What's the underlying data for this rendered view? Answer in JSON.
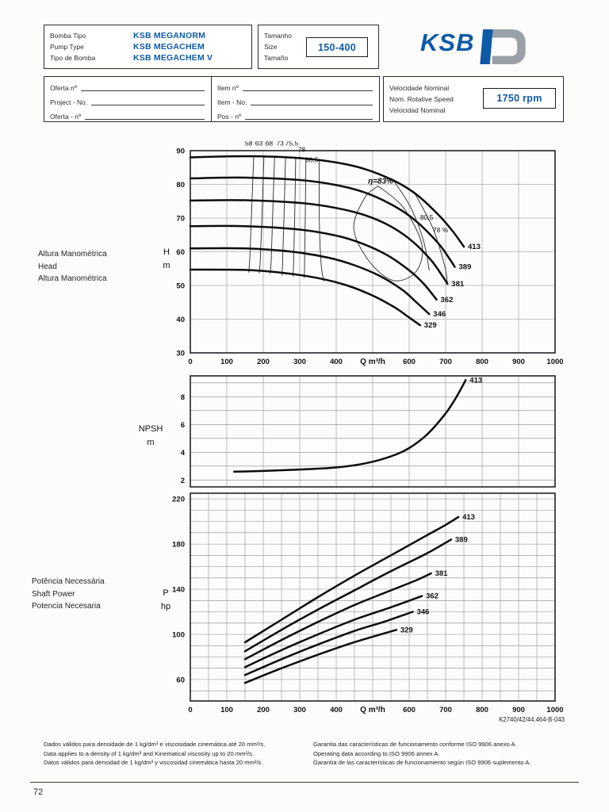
{
  "page": {
    "number": "72",
    "doc_ref": "K2740/42/44.464-B-043"
  },
  "colors": {
    "accent_blue": "#0e5aa7",
    "logo_gray": "#9aa1a8"
  },
  "header": {
    "pump_type": {
      "labels": [
        "Bomba Tipo",
        "Pump Type",
        "Tipo de Bomba"
      ],
      "values": [
        "KSB MEGANORM",
        "KSB MEGACHEM",
        "KSB MEGACHEM V"
      ]
    },
    "size": {
      "labels": [
        "Tamanho",
        "Size",
        "Tamaño"
      ],
      "value": "150-400"
    },
    "logo_text": "KSB",
    "project": {
      "labels": [
        "Oferta nº",
        "Project - No.",
        "Oferta - nº"
      ]
    },
    "item": {
      "labels": [
        "Item nº",
        "Item - No.",
        "Pos - nº"
      ]
    },
    "speed": {
      "labels": [
        "Velocidade Nominal",
        "Nom. Rotative Speed",
        "Velocidad Nominal"
      ],
      "value": "1750 rpm"
    }
  },
  "side_labels": {
    "head": {
      "lines": [
        "Altura Manométrica",
        "Head",
        "Altura Manométrica"
      ],
      "axis": [
        "H",
        "m"
      ]
    },
    "npsh": {
      "axis": [
        "NPSH",
        "m"
      ]
    },
    "power": {
      "lines": [
        "Potência Necessária",
        "Shaft Power",
        "Potencia Necesaria"
      ],
      "axis": [
        "P",
        "hp"
      ]
    }
  },
  "footer": {
    "left": [
      "Dados válidos para densidade de 1 kg/dm³ e viscosidade cinemática até 20 mm²/s.",
      "Data applies to a density of 1 kg/dm³ and Kinematical viscosity up to 20 mm²/s.",
      "Datos válidos para densidad de 1 kg/dm³ y viscosidad cinemática hasta 20 mm²/s."
    ],
    "right": [
      "Garantia das características de funcionamento conforme ISO 9906 anexo A.",
      "Operating data according to ISO 9906 annex A.",
      "Garantía de las características de funcionamiento según ISO 9906 suplemento A."
    ]
  },
  "chart_data": [
    {
      "id": "head",
      "type": "line",
      "title": "Head / flow performance curves, impeller diameters in mm",
      "xlabel": "Q m³/h",
      "xlabel_at": 500,
      "ylabel": "H m",
      "xlim": [
        0,
        1000
      ],
      "ylim": [
        30,
        90
      ],
      "xticks": [
        0,
        100,
        200,
        300,
        400,
        600,
        700,
        800,
        900,
        1000
      ],
      "yticks": [
        30,
        40,
        50,
        60,
        70,
        80,
        90
      ],
      "grid": {
        "vx": 100,
        "hy": 10,
        "h0": 30
      },
      "series": [
        {
          "name": "413",
          "points": [
            [
              0,
              88
            ],
            [
              100,
              88.3
            ],
            [
              200,
              88.3
            ],
            [
              300,
              87.8
            ],
            [
              400,
              86.5
            ],
            [
              480,
              84.5
            ],
            [
              560,
              81
            ],
            [
              620,
              77
            ],
            [
              680,
              71
            ],
            [
              720,
              66
            ],
            [
              750,
              61.5
            ]
          ]
        },
        {
          "name": "389",
          "points": [
            [
              0,
              81.8
            ],
            [
              150,
              82
            ],
            [
              300,
              81.3
            ],
            [
              400,
              79.8
            ],
            [
              480,
              77.5
            ],
            [
              560,
              73.5
            ],
            [
              620,
              69
            ],
            [
              680,
              62.5
            ],
            [
              710,
              58
            ],
            [
              725,
              55.5
            ]
          ]
        },
        {
          "name": "381",
          "points": [
            [
              0,
              75.2
            ],
            [
              150,
              75.3
            ],
            [
              300,
              74.5
            ],
            [
              400,
              73
            ],
            [
              480,
              70.8
            ],
            [
              550,
              67.5
            ],
            [
              610,
              63
            ],
            [
              660,
              57.5
            ],
            [
              690,
              53
            ],
            [
              705,
              50.5
            ]
          ]
        },
        {
          "name": "362",
          "points": [
            [
              0,
              67.6
            ],
            [
              150,
              67.6
            ],
            [
              300,
              66.6
            ],
            [
              400,
              64.8
            ],
            [
              470,
              62.5
            ],
            [
              540,
              59
            ],
            [
              600,
              54.5
            ],
            [
              640,
              50.5
            ],
            [
              675,
              45.8
            ]
          ]
        },
        {
          "name": "346",
          "points": [
            [
              0,
              61
            ],
            [
              150,
              61
            ],
            [
              280,
              60
            ],
            [
              380,
              58.2
            ],
            [
              450,
              56
            ],
            [
              520,
              52.8
            ],
            [
              580,
              48.8
            ],
            [
              620,
              45
            ],
            [
              655,
              41.5
            ]
          ]
        },
        {
          "name": "329",
          "points": [
            [
              0,
              54.7
            ],
            [
              150,
              54.6
            ],
            [
              250,
              53.8
            ],
            [
              350,
              52.2
            ],
            [
              430,
              50
            ],
            [
              500,
              47
            ],
            [
              560,
              43.5
            ],
            [
              600,
              40.5
            ],
            [
              630,
              38.2
            ]
          ]
        }
      ],
      "aux_lines": [
        {
          "label": "58",
          "points": [
            [
              174,
              88.6
            ],
            [
              168,
              72
            ],
            [
              163,
              58
            ],
            [
              160,
              53.8
            ]
          ]
        },
        {
          "label": "63",
          "points": [
            [
              202,
              88.6
            ],
            [
              197,
              72
            ],
            [
              192,
              58
            ],
            [
              189,
              53.6
            ]
          ]
        },
        {
          "label": "68",
          "points": [
            [
              231,
              88.5
            ],
            [
              226,
              72
            ],
            [
              222,
              58
            ],
            [
              219,
              53.4
            ]
          ]
        },
        {
          "label": "73",
          "points": [
            [
              261,
              88.3
            ],
            [
              257,
              71
            ],
            [
              253,
              57
            ],
            [
              251,
              53
            ]
          ]
        },
        {
          "label": "75,5",
          "points": [
            [
              289,
              88.2
            ],
            [
              286,
              70
            ],
            [
              283,
              56
            ],
            [
              281,
              52.6
            ]
          ]
        },
        {
          "label": "78",
          "points": [
            [
              317,
              88
            ],
            [
              315,
              69
            ],
            [
              313,
              55
            ],
            [
              312,
              52.2
            ]
          ]
        },
        {
          "label": "80,5",
          "points": [
            [
              353,
              87.6
            ],
            [
              354,
              68
            ],
            [
              359,
              56
            ],
            [
              366,
              51.2
            ]
          ]
        },
        {
          "label": "80,5 right",
          "points": [
            [
              555,
              81.5
            ],
            [
              605,
              73
            ],
            [
              640,
              63
            ],
            [
              655,
              54.5
            ]
          ]
        },
        {
          "label": "78 right",
          "points": [
            [
              612,
              78
            ],
            [
              665,
              67
            ],
            [
              697,
              56
            ],
            [
              705,
              50.5
            ]
          ]
        },
        {
          "label": "eta 83 contour",
          "points": [
            [
              515,
              79.5
            ],
            [
              585,
              73
            ],
            [
              635,
              62
            ],
            [
              618,
              54
            ],
            [
              555,
              51.5
            ],
            [
              488,
              57.5
            ],
            [
              448,
              67
            ],
            [
              478,
              76
            ],
            [
              515,
              79.5
            ]
          ]
        }
      ],
      "aux_labels": [
        {
          "text": "58",
          "x": 160,
          "y": 91.5
        },
        {
          "text": "63",
          "x": 188,
          "y": 91.5
        },
        {
          "text": "68",
          "x": 216,
          "y": 91.5
        },
        {
          "text": "73",
          "x": 246,
          "y": 91.5
        },
        {
          "text": "75,5",
          "x": 278,
          "y": 91.5
        },
        {
          "text": "78",
          "x": 305,
          "y": 89.6
        },
        {
          "text": "80,5",
          "x": 333,
          "y": 86.6
        },
        {
          "text": "η=83%",
          "x": 522,
          "y": 80.2,
          "italic": true
        },
        {
          "text": "80,5",
          "x": 648,
          "y": 69.5
        },
        {
          "text": "78 %",
          "x": 686,
          "y": 65.8
        }
      ]
    },
    {
      "id": "npsh",
      "type": "line",
      "title": "NPSH curve",
      "xlabel": "",
      "ylabel": "NPSH m",
      "xlim": [
        0,
        1000
      ],
      "ylim": [
        1.5,
        9.5
      ],
      "yticks": [
        2,
        4,
        6,
        8
      ],
      "grid": {
        "vx": 100,
        "hy": 1,
        "h0": 2
      },
      "series": [
        {
          "name": "413",
          "points": [
            [
              120,
              2.6
            ],
            [
              200,
              2.65
            ],
            [
              300,
              2.75
            ],
            [
              400,
              2.9
            ],
            [
              480,
              3.2
            ],
            [
              550,
              3.7
            ],
            [
              600,
              4.3
            ],
            [
              650,
              5.3
            ],
            [
              700,
              6.8
            ],
            [
              730,
              8
            ],
            [
              755,
              9.2
            ]
          ]
        }
      ]
    },
    {
      "id": "power",
      "type": "line",
      "title": "Shaft power curves, impeller diameters in mm",
      "xlabel": "Q m³/h",
      "xlabel_at": 500,
      "ylabel": "P hp",
      "xlim": [
        0,
        1000
      ],
      "ylim": [
        41,
        225
      ],
      "xticks": [
        0,
        100,
        200,
        300,
        400,
        600,
        700,
        800,
        900,
        1000
      ],
      "yticks": [
        60,
        100,
        140,
        180,
        220
      ],
      "grid": {
        "vx": 50,
        "hy": 10,
        "h0": 50
      },
      "series": [
        {
          "name": "413",
          "points": [
            [
              150,
              93
            ],
            [
              250,
              113
            ],
            [
              350,
              133
            ],
            [
              450,
              152
            ],
            [
              550,
              170
            ],
            [
              650,
              188
            ],
            [
              700,
              197
            ],
            [
              735,
              204
            ]
          ]
        },
        {
          "name": "389",
          "points": [
            [
              150,
              85
            ],
            [
              250,
              104
            ],
            [
              350,
              122
            ],
            [
              450,
              139
            ],
            [
              550,
              156
            ],
            [
              650,
              172
            ],
            [
              715,
              184
            ]
          ]
        },
        {
          "name": "381",
          "points": [
            [
              150,
              78
            ],
            [
              250,
              95
            ],
            [
              350,
              111
            ],
            [
              450,
              126
            ],
            [
              550,
              139
            ],
            [
              620,
              148
            ],
            [
              660,
              154
            ]
          ]
        },
        {
          "name": "362",
          "points": [
            [
              150,
              71
            ],
            [
              250,
              86
            ],
            [
              350,
              100
            ],
            [
              450,
              113
            ],
            [
              550,
              124
            ],
            [
              635,
              134
            ]
          ]
        },
        {
          "name": "346",
          "points": [
            [
              150,
              64
            ],
            [
              250,
              78
            ],
            [
              350,
              91
            ],
            [
              450,
              103
            ],
            [
              530,
              111
            ],
            [
              610,
              120
            ]
          ]
        },
        {
          "name": "329",
          "points": [
            [
              150,
              57
            ],
            [
              250,
              70
            ],
            [
              350,
              82
            ],
            [
              430,
              91
            ],
            [
              490,
              97
            ],
            [
              565,
              104
            ]
          ]
        }
      ]
    }
  ]
}
